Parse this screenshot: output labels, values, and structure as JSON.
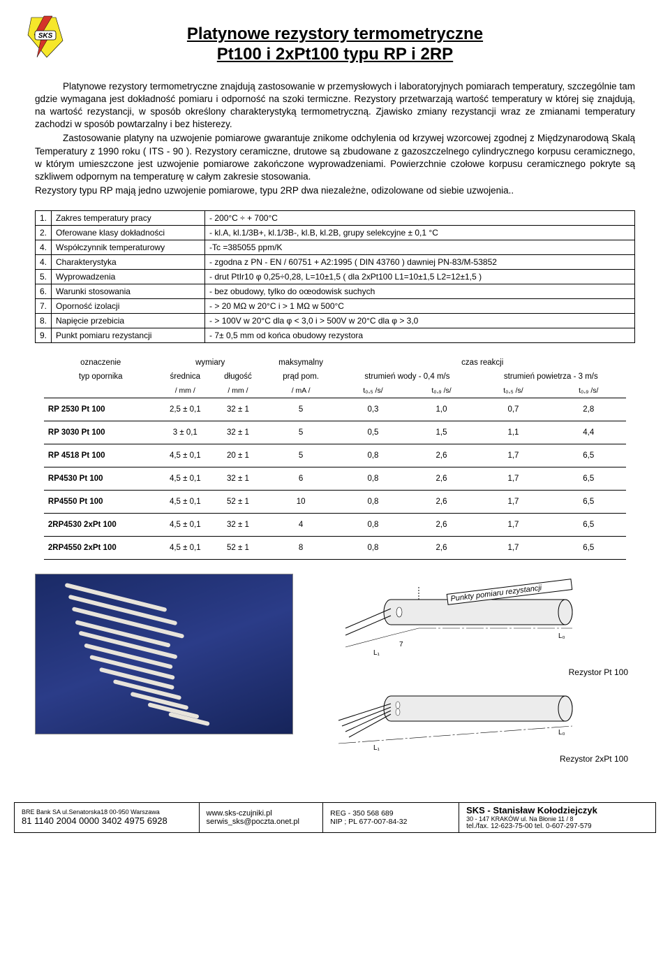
{
  "title_line1": "Platynowe rezystory termometryczne",
  "title_line2": "Pt100 i 2xPt100 typu RP i 2RP",
  "paragraphs": {
    "p1": "Platynowe rezystory termometryczne znajdują zastosowanie w przemysłowych i laboratoryjnych pomiarach temperatury, szczególnie tam gdzie wymagana jest dokładność pomiaru i odporność na szoki termiczne. Rezystory przetwarzają wartość temperatury w której się znajdują, na wartość rezystancji, w sposób określony charakterystyką termometryczną. Zjawisko zmiany rezystancji wraz ze zmianami temperatury zachodzi w sposób powtarzalny i bez histerezy.",
    "p2": "Zastosowanie platyny na uzwojenie pomiarowe gwarantuje znikome odchylenia od krzywej wzorcowej zgodnej z Międzynarodową Skalą Temperatury z 1990 roku ( ITS - 90 ). Rezystory ceramiczne, drutowe są zbudowane z gazoszczelnego cylindrycznego korpusu ceramicznego, w którym umieszczone jest uzwojenie pomiarowe zakończone wyprowadzeniami. Powierzchnie czołowe korpusu ceramicznego pokryte są szkliwem odpornym na temperaturę w całym zakresie stosowania.",
    "p3": "Rezystory typu RP mają jedno uzwojenie pomiarowe, typu 2RP dwa niezależne, odizolowane od siebie uzwojenia.."
  },
  "spec_rows": [
    {
      "n": "1.",
      "label": "Zakres temperatury pracy",
      "val": "- 200°C ÷ + 700°C"
    },
    {
      "n": "2.",
      "label": "Oferowane klasy dokładności",
      "val": "- kl.A, kl.1/3B+, kl.1/3B-, kl.B, kl.2B, grupy selekcyjne  ± 0,1 °C"
    },
    {
      "n": "4.",
      "label": "Współczynnik temperaturowy",
      "val": "-Tc =385055 ppm/K"
    },
    {
      "n": "4.",
      "label": "Charakterystyka",
      "val": "- zgodna z PN - EN / 60751 + A2:1995  ( DIN 43760 ) dawniej PN-83/M-53852"
    },
    {
      "n": "5.",
      "label": "Wyprowadzenia",
      "val": "- drut PtIr10 φ 0,25÷0,28, L=10±1,5  ( dla 2xPt100 L1=10±1,5  L2=12±1,5 )"
    },
    {
      "n": "6.",
      "label": "Warunki stosowania",
      "val": "- bez obudowy, tylko do oœodowisk suchych"
    },
    {
      "n": "7.",
      "label": "Oporność izolacji",
      "val": "- > 20 MΩ w 20°C i > 1 MΩ w 500°C"
    },
    {
      "n": "8.",
      "label": "Napięcie przebicia",
      "val": "- > 100V w 20°C dla φ < 3,0 i > 500V w 20°C dla φ > 3,0"
    },
    {
      "n": "9.",
      "label": "Punkt pomiaru rezystancji",
      "val": "- 7± 0,5 mm od końca obudowy rezystora"
    }
  ],
  "data_header": {
    "h_ozn": "oznaczenie",
    "h_wym": "wymiary",
    "h_max": "maksymalny",
    "h_czas": "czas reakcji",
    "h_typ": "typ opornika",
    "h_sred": "średnica",
    "h_dlug": "długość",
    "h_prad": "prąd pom.",
    "h_wody": "strumień wody - 0,4 m/s",
    "h_pow": "strumień powietrza - 3 m/s",
    "u_mm": "/ mm /",
    "u_ma": "/ mA /",
    "u_t05": "t₀,₅ /s/",
    "u_t09": "t₀,₉ /s/"
  },
  "data_rows": [
    {
      "label": "RP 2530   Pt 100",
      "d": "2,5 ± 0,1",
      "l": "32 ± 1",
      "i": "5",
      "w05": "0,3",
      "w09": "1,0",
      "a05": "0,7",
      "a09": "2,8"
    },
    {
      "label": "RP 3030   Pt 100",
      "d": "3 ± 0,1",
      "l": "32 ± 1",
      "i": "5",
      "w05": "0,5",
      "w09": "1,5",
      "a05": "1,1",
      "a09": "4,4"
    },
    {
      "label": "RP 4518   Pt 100",
      "d": "4,5 ± 0,1",
      "l": "20 ± 1",
      "i": "5",
      "w05": "0,8",
      "w09": "2,6",
      "a05": "1,7",
      "a09": "6,5"
    },
    {
      "label": "RP4530    Pt 100",
      "d": "4,5 ± 0,1",
      "l": "32 ± 1",
      "i": "6",
      "w05": "0,8",
      "w09": "2,6",
      "a05": "1,7",
      "a09": "6,5"
    },
    {
      "label": "RP4550    Pt 100",
      "d": "4,5 ± 0,1",
      "l": "52 ± 1",
      "i": "10",
      "w05": "0,8",
      "w09": "2,6",
      "a05": "1,7",
      "a09": "6,5"
    },
    {
      "label": "2RP4530  2xPt 100",
      "d": "4,5 ± 0,1",
      "l": "32 ± 1",
      "i": "4",
      "w05": "0,8",
      "w09": "2,6",
      "a05": "1,7",
      "a09": "6,5"
    },
    {
      "label": "2RP4550  2xPt 100",
      "d": "4,5 ± 0,1",
      "l": "52 ± 1",
      "i": "8",
      "w05": "0,8",
      "w09": "2,6",
      "a05": "1,7",
      "a09": "6,5"
    }
  ],
  "diagram": {
    "punkty": "Punkty pomiaru rezystancji",
    "cap1": "Rezystor Pt 100",
    "cap2": "Rezystor 2xPt 100",
    "seven": "7",
    "L1": "L₁",
    "L0": "L₀"
  },
  "footer": {
    "bank": "BRE Bank SA ul.Senatorska18  00-950 Warszawa",
    "acct": "81 1140 2004 0000 3402 4975 6928",
    "www": "www.sks-czujniki.pl",
    "email": "serwis_sks@poczta.onet.pl",
    "reg": "REG - 350 568 689",
    "nip": "NIP ; PL 677-007-84-32",
    "company": "SKS - Stanisław Kołodziejczyk",
    "addr": "30 - 147  KRAKÓW    ul. Na Błonie 11 / 8",
    "tel": "tel./fax.  12-623-75-00  tel. 0-607-297-579"
  },
  "colors": {
    "photo_bg_start": "#1a2a66",
    "photo_bg_mid": "#2b3c88",
    "photo_bg_end": "#16245a",
    "stick": "#e8e4db",
    "border": "#000000",
    "text": "#000000",
    "page_bg": "#ffffff",
    "diagram_fill": "#ececec",
    "diagram_stroke": "#000000",
    "logo_yellow": "#f6e72a",
    "logo_red": "#d4342a"
  }
}
